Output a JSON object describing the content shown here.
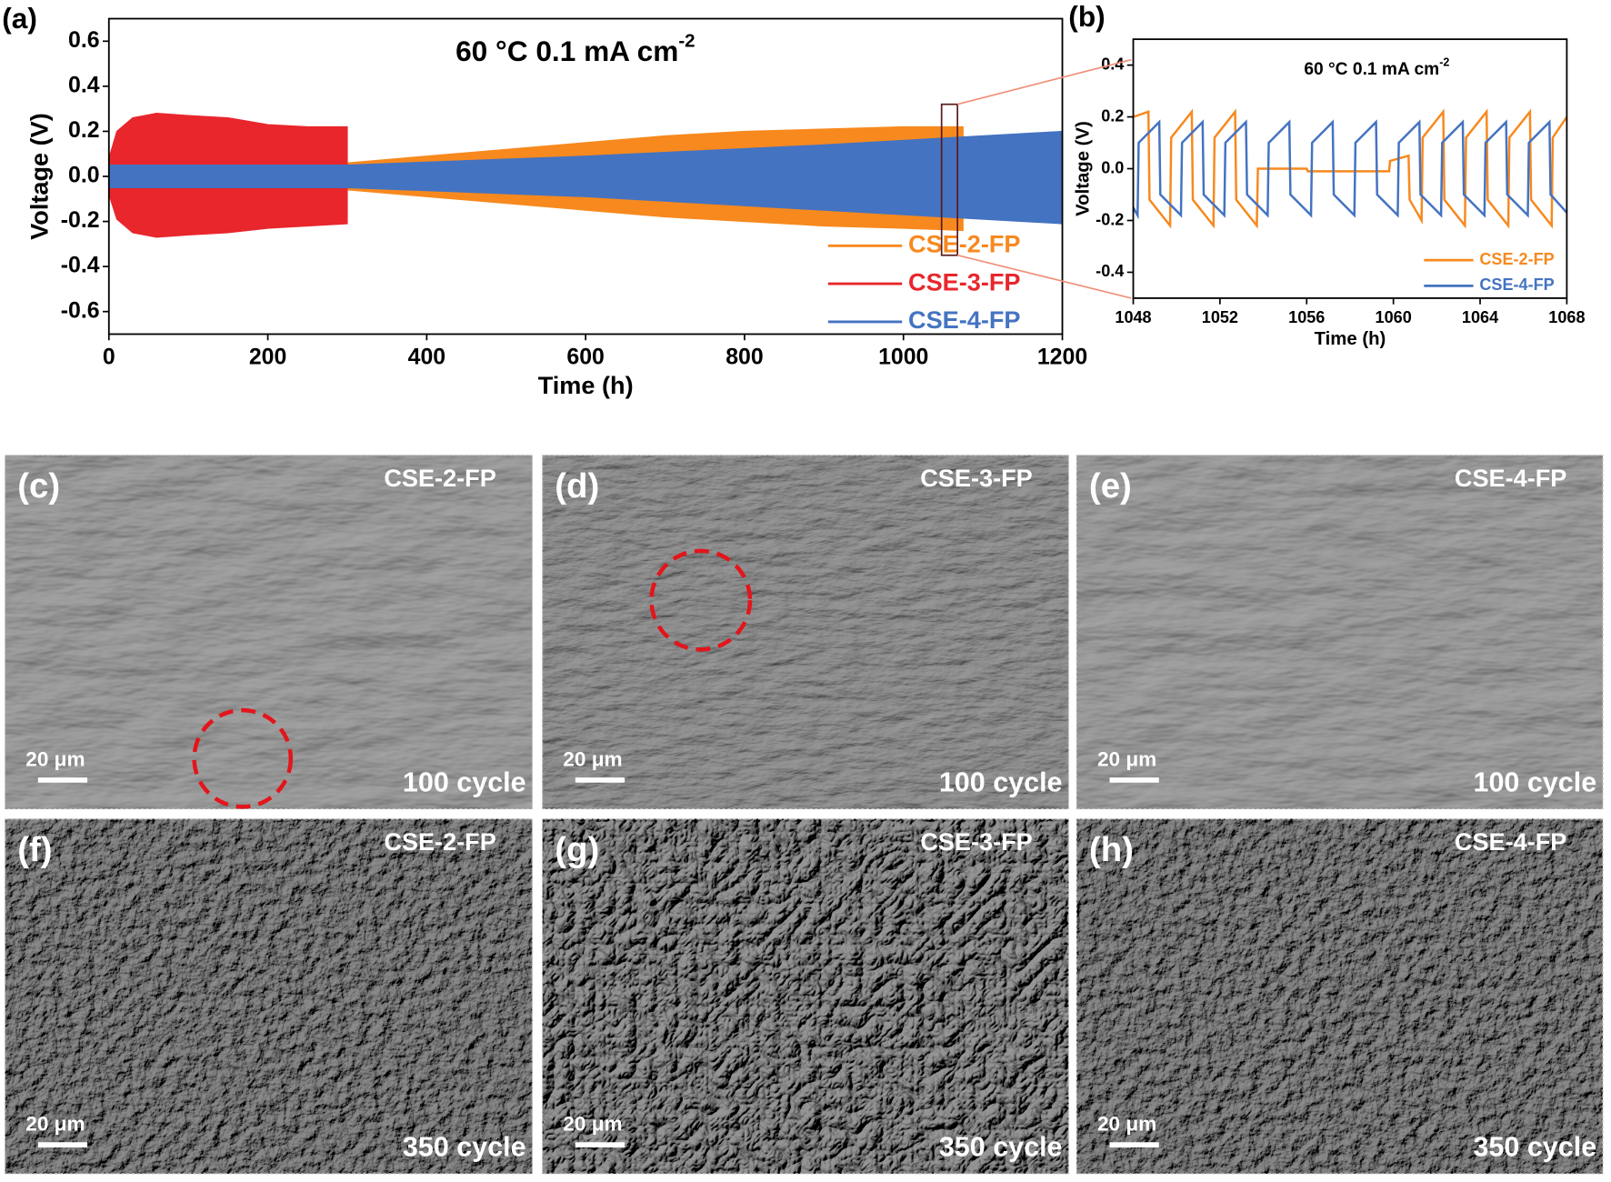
{
  "chart_data": [
    {
      "type": "area",
      "panel_label": "(a)",
      "title": {
        "text": "60 °C  0.1 mA cm",
        "superscript": "-2"
      },
      "x_label": "Time (h)",
      "y_label": "Voltage (V)",
      "xlim": [
        0,
        1200
      ],
      "xticks": [
        0,
        200,
        400,
        600,
        800,
        1000,
        1200
      ],
      "ylim": [
        -0.7,
        0.7
      ],
      "yticks": [
        -0.6,
        -0.4,
        -0.2,
        {
          "value": 0,
          "label": "0.0"
        },
        0.2,
        0.4,
        0.6
      ],
      "legend": "lower right",
      "series": [
        {
          "name": "CSE-2-FP",
          "color": "#f7891f",
          "x": [
            0,
            300,
            400,
            500,
            600,
            700,
            800,
            900,
            1000,
            1075
          ],
          "values": [
            0.05,
            0.06,
            0.09,
            0.12,
            0.15,
            0.18,
            0.2,
            0.21,
            0.22,
            0.22
          ],
          "lower": [
            -0.05,
            -0.06,
            -0.09,
            -0.12,
            -0.15,
            -0.18,
            -0.2,
            -0.22,
            -0.23,
            -0.24
          ]
        },
        {
          "name": "CSE-3-FP",
          "color": "#e8262c",
          "x": [
            0,
            10,
            30,
            60,
            100,
            150,
            200,
            250,
            300
          ],
          "values": [
            0.08,
            0.2,
            0.26,
            0.28,
            0.27,
            0.26,
            0.23,
            0.22,
            0.22
          ],
          "lower": [
            -0.08,
            -0.19,
            -0.25,
            -0.27,
            -0.26,
            -0.25,
            -0.23,
            -0.22,
            -0.21
          ]
        },
        {
          "name": "CSE-4-FP",
          "color": "#4473c1",
          "x": [
            0,
            300,
            600,
            900,
            1200
          ],
          "values": [
            0.05,
            0.05,
            0.09,
            0.14,
            0.2
          ],
          "lower": [
            -0.05,
            -0.05,
            -0.09,
            -0.15,
            -0.21
          ]
        }
      ]
    },
    {
      "type": "line",
      "panel_label": "(b)",
      "title": {
        "text": "60 °C  0.1 mA cm",
        "superscript": "-2"
      },
      "x_label": "Time (h)",
      "y_label": "Voltage (V)",
      "xlim": [
        1048,
        1068
      ],
      "xticks": [
        1048,
        1052,
        1056,
        1060,
        1064,
        1068
      ],
      "ylim": [
        -0.5,
        0.5
      ],
      "yticks": [
        -0.4,
        -0.2,
        {
          "value": 0,
          "label": "0.0"
        },
        0.2,
        0.4
      ],
      "legend": "lower right",
      "series": [
        {
          "name": "CSE-2-FP",
          "color": "#f7891f",
          "x": [
            1048,
            1048.7,
            1048.75,
            1049.7,
            1049.75,
            1050.7,
            1050.75,
            1051.7,
            1051.75,
            1052.7,
            1052.75,
            1053.7,
            1053.75,
            1056,
            1056.05,
            1059.8,
            1059.85,
            1060.7,
            1060.75,
            1061.3,
            1061.35,
            1062.3,
            1062.35,
            1063.3,
            1063.35,
            1064.3,
            1064.35,
            1065.3,
            1065.35,
            1066.3,
            1066.35,
            1067.3,
            1067.35,
            1068
          ],
          "values": [
            0.2,
            0.22,
            -0.12,
            -0.22,
            0.12,
            0.22,
            -0.12,
            -0.22,
            0.12,
            0.22,
            -0.12,
            -0.22,
            0.0,
            0.0,
            -0.01,
            -0.01,
            0.03,
            0.05,
            -0.12,
            -0.2,
            0.12,
            0.22,
            -0.12,
            -0.22,
            0.12,
            0.22,
            -0.12,
            -0.22,
            0.12,
            0.22,
            -0.12,
            -0.22,
            0.12,
            0.2
          ]
        },
        {
          "name": "CSE-4-FP",
          "color": "#4473c1",
          "x": [
            1048,
            1048.2,
            1048.25,
            1049.2,
            1049.25,
            1050.2,
            1050.25,
            1051.2,
            1051.25,
            1052.2,
            1052.25,
            1053.2,
            1053.25,
            1054.2,
            1054.25,
            1055.2,
            1055.25,
            1056.2,
            1056.25,
            1057.2,
            1057.25,
            1058.2,
            1058.25,
            1059.2,
            1059.25,
            1060.2,
            1060.25,
            1061.2,
            1061.25,
            1062.2,
            1062.25,
            1063.2,
            1063.25,
            1064.2,
            1064.25,
            1065.2,
            1065.25,
            1066.2,
            1066.25,
            1067.2,
            1067.25,
            1068
          ],
          "values": [
            -0.15,
            -0.18,
            0.1,
            0.18,
            -0.1,
            -0.18,
            0.1,
            0.18,
            -0.1,
            -0.18,
            0.1,
            0.18,
            -0.1,
            -0.18,
            0.1,
            0.18,
            -0.1,
            -0.18,
            0.1,
            0.18,
            -0.1,
            -0.18,
            0.1,
            0.18,
            -0.1,
            -0.18,
            0.1,
            0.18,
            -0.1,
            -0.18,
            0.1,
            0.18,
            -0.1,
            -0.18,
            0.1,
            0.18,
            -0.1,
            -0.18,
            0.1,
            0.18,
            -0.1,
            -0.17
          ]
        }
      ]
    }
  ],
  "panels": [
    {
      "label": "(c)",
      "sample": "CSE-2-FP",
      "scale": "20 μm",
      "cycle": "100 cycle"
    },
    {
      "label": "(d)",
      "sample": "CSE-3-FP",
      "scale": "20 μm",
      "cycle": "100 cycle"
    },
    {
      "label": "(e)",
      "sample": "CSE-4-FP",
      "scale": "20 μm",
      "cycle": "100 cycle"
    },
    {
      "label": "(f)",
      "sample": "CSE-2-FP",
      "scale": "20 μm",
      "cycle": "350 cycle"
    },
    {
      "label": "(g)",
      "sample": "CSE-3-FP",
      "scale": "20 μm",
      "cycle": "350 cycle"
    },
    {
      "label": "(h)",
      "sample": "CSE-4-FP",
      "scale": "20 μm",
      "cycle": "350 cycle"
    }
  ]
}
